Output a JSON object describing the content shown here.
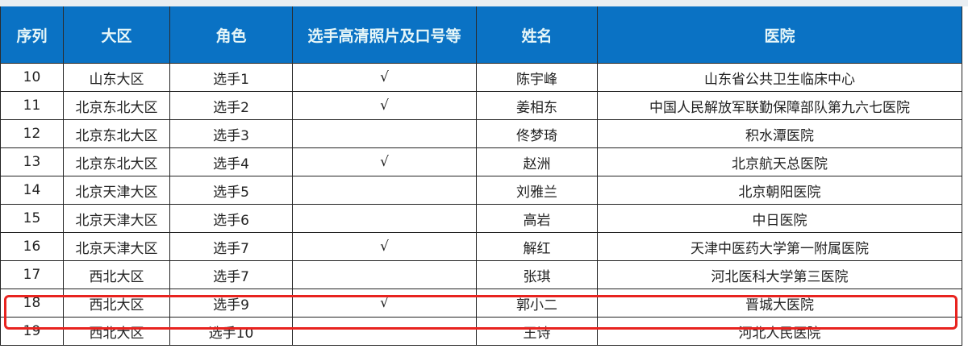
{
  "table": {
    "headers": [
      "序列",
      "大区",
      "角色",
      "选手高清照片及口号等",
      "姓名",
      "医院"
    ],
    "rows": [
      [
        "10",
        "山东大区",
        "选手1",
        "√",
        "陈宇峰",
        "山东省公共卫生临床中心"
      ],
      [
        "11",
        "北京东北大区",
        "选手2",
        "√",
        "姜相东",
        "中国人民解放军联勤保障部队第九六七医院"
      ],
      [
        "12",
        "北京东北大区",
        "选手3",
        "",
        "佟梦琦",
        "积水潭医院"
      ],
      [
        "13",
        "北京东北大区",
        "选手4",
        "√",
        "赵洲",
        "北京航天总医院"
      ],
      [
        "14",
        "北京天津大区",
        "选手5",
        "",
        "刘雅兰",
        "北京朝阳医院"
      ],
      [
        "15",
        "北京天津大区",
        "选手6",
        "",
        "高岩",
        "中日医院"
      ],
      [
        "16",
        "北京天津大区",
        "选手7",
        "√",
        "解红",
        "天津中医药大学第一附属医院"
      ],
      [
        "17",
        "西北大区",
        "选手7",
        "",
        "张琪",
        "河北医科大学第三医院"
      ],
      [
        "18",
        "西北大区",
        "选手9",
        "√",
        "郭小二",
        "晋城大医院"
      ],
      [
        "19",
        "西北大区",
        "选手10",
        "",
        "王诗",
        "河北人民医院"
      ]
    ],
    "highlighted_row": "18",
    "header_color": "#0a72c4",
    "highlight_color": "#e8231f"
  }
}
